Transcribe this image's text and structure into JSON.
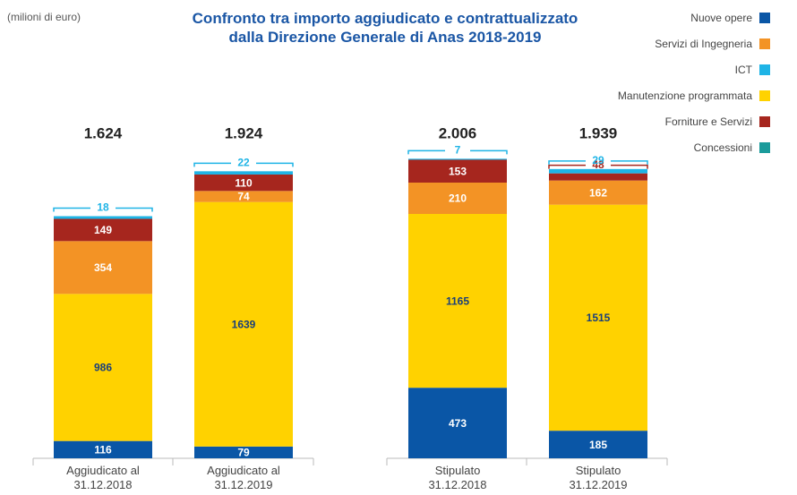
{
  "chart_data": {
    "type": "stacked_bar",
    "title": "Confronto tra importo aggiudicato e contrattualizzato\ndalla Direzione Generale di Anas 2018-2019",
    "subtitle": "(milioni di euro)",
    "categories": [
      "Aggiudicato al\n31.12.2018",
      "Aggiudicato al\n31.12.2019",
      "Stipulato\n31.12.2018",
      "Stipulato\n31.12.2019"
    ],
    "series": [
      {
        "name": "Nuove opere",
        "color": "#0a56a6",
        "values": [
          116,
          79,
          473,
          185
        ]
      },
      {
        "name": "Servizi di Ingegneria",
        "color": "#f39325",
        "values": [
          354,
          74,
          210,
          162
        ]
      },
      {
        "name": "ICT",
        "color": "#1fb4e6",
        "values": [
          18,
          22,
          7,
          29
        ]
      },
      {
        "name": "Manutenzione programmata",
        "color": "#ffd200",
        "values": [
          986,
          1639,
          1165,
          1515
        ]
      },
      {
        "name": "Forniture e Servizi",
        "color": "#a6261e",
        "values": [
          149,
          110,
          153,
          48
        ]
      },
      {
        "name": "Concessioni",
        "color": "#1b9b9b",
        "values": [
          null,
          null,
          null,
          null
        ]
      }
    ],
    "totals": [
      1624,
      1924,
      2006,
      1939
    ],
    "total_labels": [
      "1.624",
      "1.924",
      "2.006",
      "1.939"
    ],
    "ylim": [
      0,
      2400
    ]
  }
}
